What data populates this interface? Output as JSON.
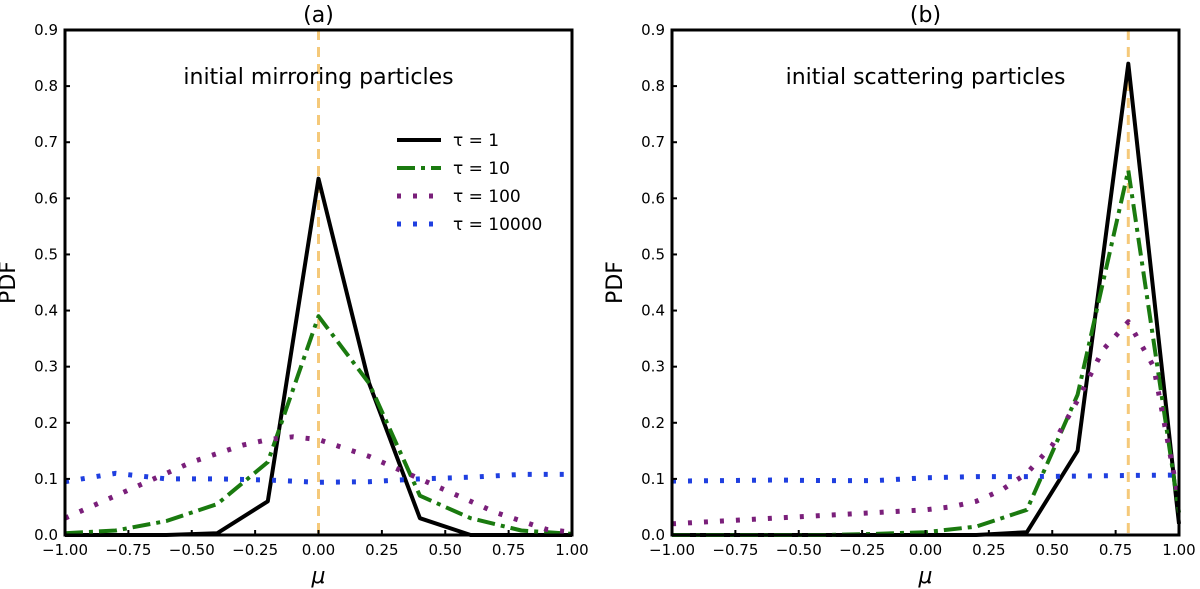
{
  "chart_data": [
    {
      "type": "line",
      "title": "(a)",
      "annotation": "initial mirroring particles",
      "xlabel": "μ",
      "ylabel": "PDF",
      "xlim": [
        -1.0,
        1.0
      ],
      "ylim": [
        0,
        0.9
      ],
      "xticks": [
        "−1.00",
        "−0.75",
        "−0.50",
        "−0.25",
        "0.00",
        "0.25",
        "0.50",
        "0.75",
        "1.00"
      ],
      "yticks": [
        "0.0",
        "0.1",
        "0.2",
        "0.3",
        "0.4",
        "0.5",
        "0.6",
        "0.7",
        "0.8",
        "0.9"
      ],
      "vline": {
        "x": 0.0,
        "color": "#f5c97a"
      },
      "legend_position": "upper-right",
      "series": [
        {
          "name": "τ = 1",
          "color": "#000000",
          "style": "solid",
          "x": [
            -1.0,
            -0.8,
            -0.6,
            -0.4,
            -0.2,
            0.0,
            0.2,
            0.4,
            0.6,
            0.8,
            1.0
          ],
          "y": [
            0,
            0,
            0,
            0.003,
            0.06,
            0.635,
            0.27,
            0.03,
            0,
            0,
            0
          ]
        },
        {
          "name": "τ = 10",
          "color": "#1a7a0f",
          "style": "dashdot",
          "x": [
            -1.0,
            -0.8,
            -0.6,
            -0.4,
            -0.2,
            0.0,
            0.2,
            0.4,
            0.6,
            0.8,
            1.0
          ],
          "y": [
            0.003,
            0.008,
            0.025,
            0.055,
            0.13,
            0.39,
            0.27,
            0.07,
            0.03,
            0.008,
            0.002
          ]
        },
        {
          "name": "τ = 100",
          "color": "#7a1f7a",
          "style": "dotted",
          "x": [
            -1.0,
            -0.9,
            -0.8,
            -0.7,
            -0.6,
            -0.5,
            -0.4,
            -0.3,
            -0.2,
            -0.1,
            0.0,
            0.1,
            0.2,
            0.3,
            0.4,
            0.5,
            0.6,
            0.7,
            0.8,
            0.9,
            1.0
          ],
          "y": [
            0.03,
            0.05,
            0.07,
            0.09,
            0.11,
            0.13,
            0.145,
            0.16,
            0.17,
            0.175,
            0.17,
            0.155,
            0.14,
            0.12,
            0.1,
            0.08,
            0.06,
            0.04,
            0.025,
            0.01,
            0.005
          ]
        },
        {
          "name": "τ = 10000",
          "color": "#1f3fe0",
          "style": "dotted",
          "x": [
            -1.0,
            -0.8,
            -0.6,
            -0.4,
            -0.2,
            0.0,
            0.2,
            0.4,
            0.6,
            0.8,
            1.0
          ],
          "y": [
            0.095,
            0.11,
            0.1,
            0.1,
            0.098,
            0.094,
            0.095,
            0.1,
            0.103,
            0.108,
            0.108
          ]
        }
      ]
    },
    {
      "type": "line",
      "title": "(b)",
      "annotation": "initial scattering particles",
      "xlabel": "μ",
      "ylabel": "PDF",
      "xlim": [
        -1.0,
        1.0
      ],
      "ylim": [
        0,
        0.9
      ],
      "xticks": [
        "−1.00",
        "−0.75",
        "−0.50",
        "−0.25",
        "0.00",
        "0.25",
        "0.50",
        "0.75",
        "1.00"
      ],
      "yticks": [
        "0.0",
        "0.1",
        "0.2",
        "0.3",
        "0.4",
        "0.5",
        "0.6",
        "0.7",
        "0.8",
        "0.9"
      ],
      "vline": {
        "x": 0.8,
        "color": "#f5c97a"
      },
      "series": [
        {
          "name": "τ = 1",
          "color": "#000000",
          "style": "solid",
          "x": [
            -1.0,
            -0.8,
            -0.6,
            -0.4,
            -0.2,
            0.0,
            0.2,
            0.4,
            0.6,
            0.8,
            1.0
          ],
          "y": [
            0,
            0,
            0,
            0,
            0,
            0,
            0,
            0.005,
            0.15,
            0.84,
            0.02
          ]
        },
        {
          "name": "τ = 10",
          "color": "#1a7a0f",
          "style": "dashdot",
          "x": [
            -1.0,
            -0.8,
            -0.6,
            -0.4,
            -0.2,
            0.0,
            0.2,
            0.4,
            0.6,
            0.8,
            1.0
          ],
          "y": [
            0,
            0,
            0,
            0,
            0.002,
            0.005,
            0.015,
            0.045,
            0.25,
            0.65,
            0.04
          ]
        },
        {
          "name": "τ = 100",
          "color": "#7a1f7a",
          "style": "dotted",
          "x": [
            -1.0,
            -0.8,
            -0.6,
            -0.4,
            -0.2,
            0.0,
            0.1,
            0.2,
            0.3,
            0.4,
            0.5,
            0.6,
            0.7,
            0.8,
            0.9,
            1.0
          ],
          "y": [
            0.02,
            0.025,
            0.03,
            0.035,
            0.04,
            0.045,
            0.05,
            0.06,
            0.08,
            0.11,
            0.16,
            0.24,
            0.33,
            0.38,
            0.3,
            0.06
          ]
        },
        {
          "name": "τ = 10000",
          "color": "#1f3fe0",
          "style": "dotted",
          "x": [
            -1.0,
            -0.8,
            -0.6,
            -0.4,
            -0.2,
            0.0,
            0.2,
            0.4,
            0.6,
            0.8,
            1.0
          ],
          "y": [
            0.096,
            0.097,
            0.098,
            0.097,
            0.097,
            0.102,
            0.104,
            0.104,
            0.105,
            0.106,
            0.107
          ]
        }
      ]
    }
  ]
}
